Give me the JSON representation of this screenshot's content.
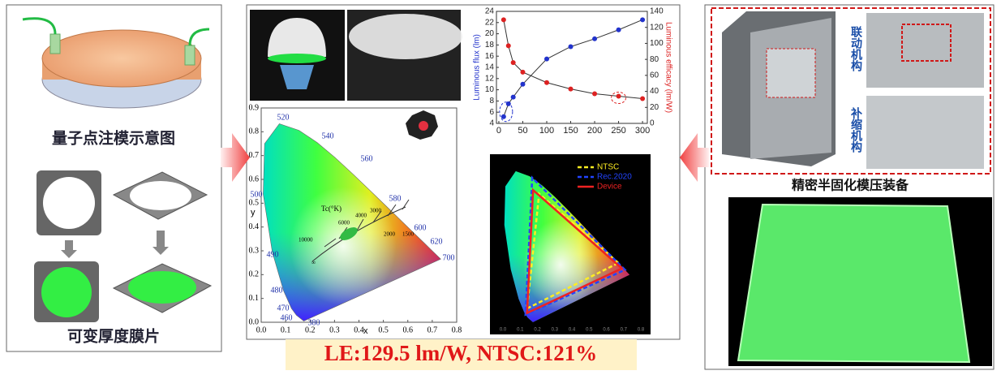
{
  "left_panel": {
    "top_caption": "量子点注模示意图",
    "bottom_caption": "可变厚度膜片"
  },
  "chart_data": {
    "type": "line",
    "x": [
      10,
      20,
      30,
      50,
      100,
      150,
      200,
      250,
      300
    ],
    "xlim": [
      -5,
      310
    ],
    "xticks": [
      0,
      50,
      100,
      150,
      200,
      250,
      300
    ],
    "ylabel": "Luminous flux (lm)",
    "ylim": [
      4,
      24
    ],
    "yticks": [
      4,
      6,
      8,
      10,
      12,
      14,
      16,
      18,
      20,
      22,
      24
    ],
    "y2label": "Luminous efficacy (lm/W)",
    "y2lim": [
      0,
      140
    ],
    "y2ticks": [
      0,
      20,
      40,
      60,
      80,
      100,
      120,
      140
    ],
    "series": [
      {
        "color": "#2233cc",
        "values": [
          5.2,
          7.5,
          8.7,
          11.0,
          15.5,
          17.7,
          19.1,
          20.7,
          22.5
        ]
      },
      {
        "color": "#dd2222",
        "axis": "y2",
        "values": [
          129.5,
          97,
          76,
          64,
          51,
          43,
          37,
          34,
          31
        ]
      }
    ]
  },
  "cie_chart": {
    "xlabel": "x",
    "ylabel": "y",
    "xticks": [
      {
        "value": 0,
        "label": "0.0"
      },
      0.1,
      0.2,
      0.3,
      0.4,
      0.5,
      0.6,
      0.7,
      0.8
    ],
    "yticks": [
      {
        "value": 0,
        "label": "0.0"
      },
      0.1,
      0.2,
      0.3,
      0.4,
      0.5,
      0.6,
      0.7,
      0.8,
      0.9
    ],
    "wavelengths": [
      380,
      460,
      470,
      480,
      490,
      500,
      520,
      540,
      560,
      580,
      600,
      620,
      700
    ],
    "cct_title": "Tc(°K)",
    "cct_labels": [
      "10000",
      "6000",
      "4000",
      "3000",
      "2000",
      "1500",
      "∞"
    ]
  },
  "gamut_chart": {
    "legend": [
      {
        "name": "NTSC",
        "color": "#ffee22"
      },
      {
        "name": "Rec.2020",
        "color": "#2244ff"
      },
      {
        "name": "Device",
        "color": "#ee2222"
      }
    ],
    "xticks": [
      {
        "value": 0,
        "label": "0.0"
      },
      0.1,
      0.2,
      0.3,
      0.4,
      0.5,
      0.6,
      0.7,
      0.8
    ]
  },
  "banner": "LE:129.5 lm/W, NTSC:121%",
  "right_panel": {
    "label_1": "联动机构",
    "label_2": "补缩机构",
    "caption": "精密半固化模压装备"
  }
}
